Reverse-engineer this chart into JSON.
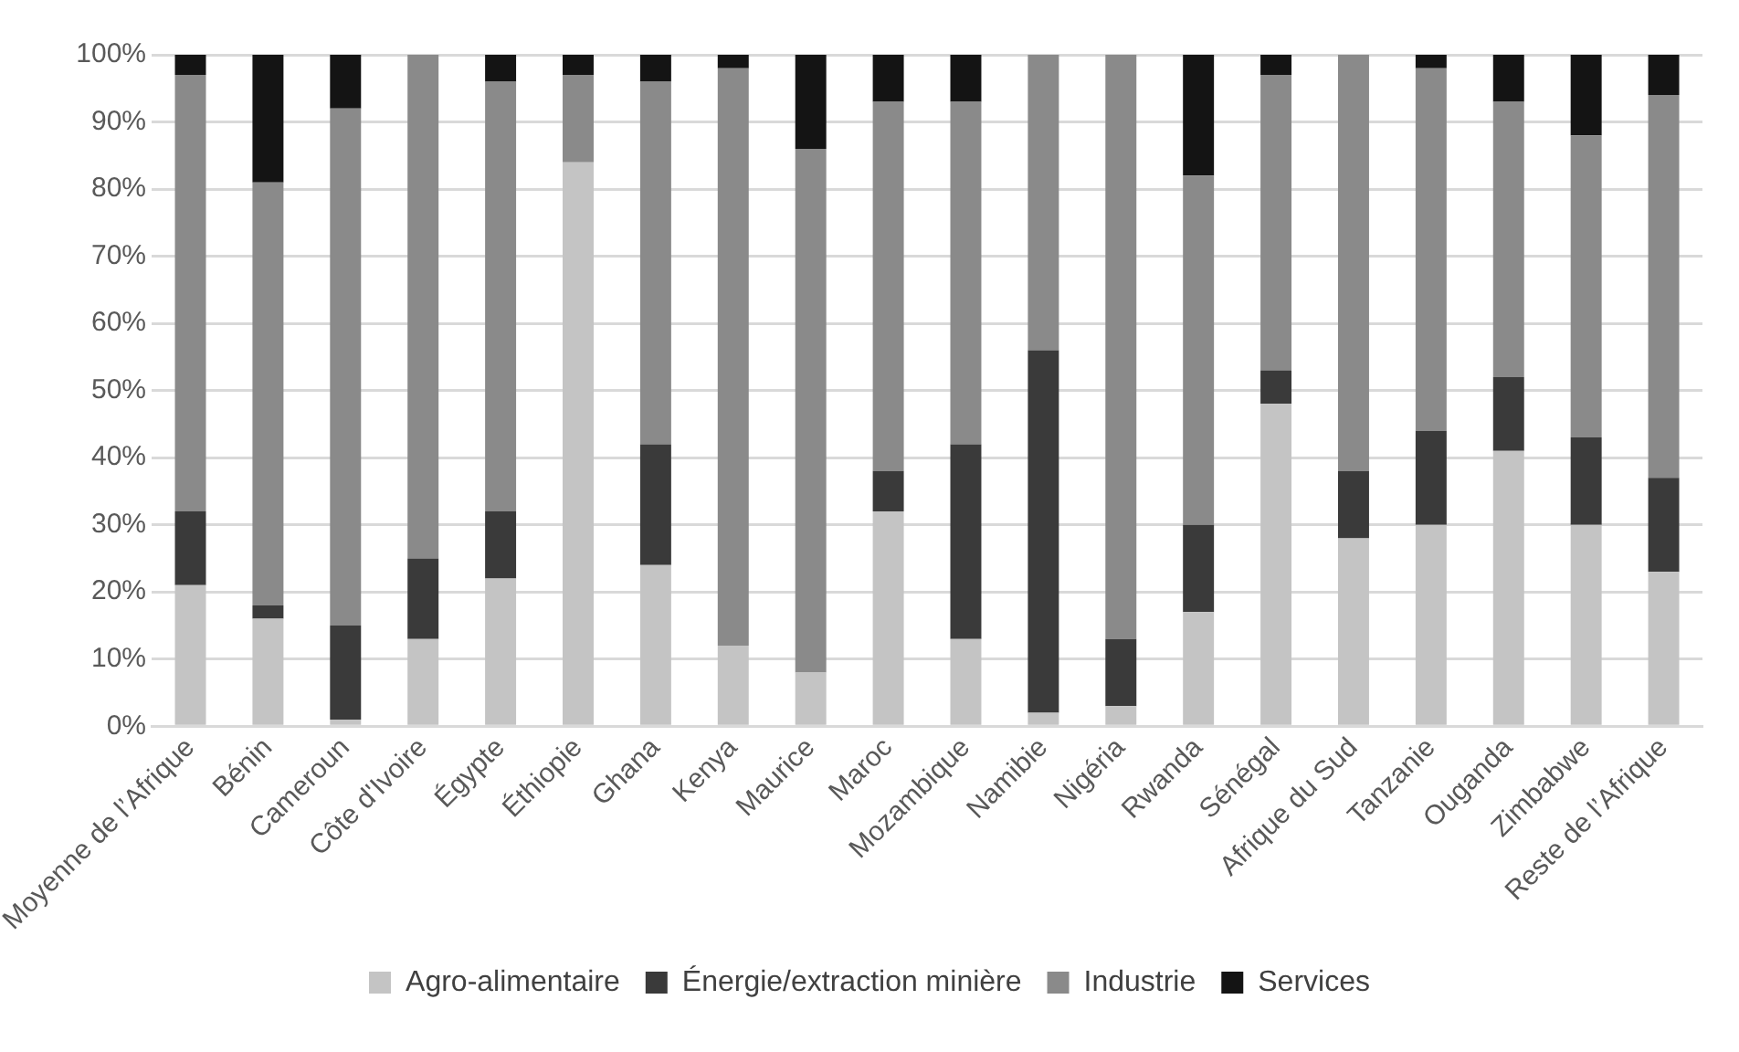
{
  "chart_data": {
    "type": "bar",
    "stacked": true,
    "legend": "bottom",
    "grid": "y",
    "categories": [
      "Moyenne de l’Afrique",
      "Bénin",
      "Cameroun",
      "Côte d'Ivoire",
      "Égypte",
      "Éthiopie",
      "Ghana",
      "Kenya",
      "Maurice",
      "Maroc",
      "Mozambique",
      "Namibie",
      "Nigéria",
      "Rwanda",
      "Sénégal",
      "Afrique du Sud",
      "Tanzanie",
      "Ouganda",
      "Zimbabwe",
      "Reste de l’Afrique"
    ],
    "ylim": [
      0,
      100
    ],
    "yticks": [
      {
        "value": 0,
        "label": "0%"
      },
      {
        "value": 10,
        "label": "10%"
      },
      {
        "value": 20,
        "label": "20%"
      },
      {
        "value": 30,
        "label": "30%"
      },
      {
        "value": 40,
        "label": "40%"
      },
      {
        "value": 50,
        "label": "50%"
      },
      {
        "value": 60,
        "label": "60%"
      },
      {
        "value": 70,
        "label": "70%"
      },
      {
        "value": 80,
        "label": "80%"
      },
      {
        "value": 90,
        "label": "90%"
      },
      {
        "value": 100,
        "label": "100%"
      }
    ],
    "series": [
      {
        "name": "Agro-alimentaire",
        "color": "#c4c4c4",
        "values": [
          21,
          16,
          1,
          13,
          22,
          84,
          24,
          12,
          8,
          32,
          13,
          2,
          3,
          17,
          48,
          28,
          30,
          41,
          30,
          23
        ]
      },
      {
        "name": "Énergie/extraction minière",
        "color": "#3a3a3a",
        "values": [
          11,
          2,
          14,
          12,
          10,
          0,
          18,
          0,
          0,
          6,
          29,
          54,
          10,
          13,
          5,
          10,
          14,
          11,
          13,
          14
        ]
      },
      {
        "name": "Industrie",
        "color": "#8a8a8a",
        "values": [
          65,
          63,
          77,
          75,
          64,
          13,
          54,
          86,
          78,
          55,
          51,
          44,
          87,
          52,
          44,
          62,
          54,
          41,
          45,
          57
        ]
      },
      {
        "name": "Services",
        "color": "#141414",
        "values": [
          3,
          19,
          8,
          0,
          4,
          3,
          4,
          2,
          14,
          7,
          7,
          0,
          0,
          18,
          3,
          0,
          2,
          7,
          12,
          6
        ]
      }
    ]
  }
}
